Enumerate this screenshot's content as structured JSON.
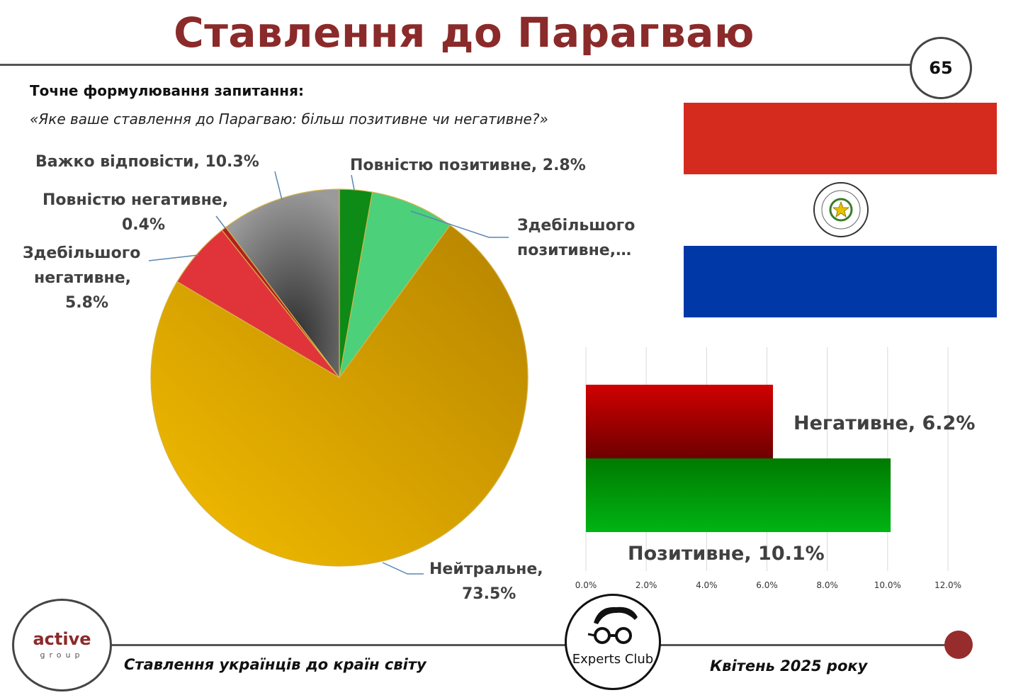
{
  "header": {
    "title": "Ставлення до Парагваю",
    "page_number": "65"
  },
  "question": {
    "label": "Точне формулювання запитання:",
    "text": "«Яке ваше ставлення до Парагваю: більш позитивне чи негативне?»"
  },
  "footer": {
    "logo_main": "active",
    "logo_sub": "group",
    "left_text": "Ставлення українців до країн світу",
    "right_text": "Квітень 2025 року",
    "experts_logo": "Experts Club"
  },
  "flag": {
    "colors": {
      "red": "#d52b1e",
      "white": "#ffffff",
      "blue": "#0038a8"
    }
  },
  "chart_data": [
    {
      "type": "pie",
      "title": "",
      "slices": [
        {
          "label": "Повністю позитивне, 2.8%",
          "value": 2.8,
          "color": "#0e8a16"
        },
        {
          "label": "Здебільшого позитивне,…",
          "value": 7.2,
          "color": "#4cd07a"
        },
        {
          "label": "Нейтральне, 73.5%",
          "value": 73.5,
          "color": "#e8ad00"
        },
        {
          "label": "Здебільшого негативне, 5.8%",
          "value": 5.8,
          "color": "#e0343a"
        },
        {
          "label": "Повністю негативне, 0.4%",
          "value": 0.4,
          "color": "#b02020"
        },
        {
          "label": "Важко відповісти, 10.3%",
          "value": 10.3,
          "color": "#6e6e6e"
        }
      ]
    },
    {
      "type": "bar",
      "orientation": "horizontal",
      "categories": [
        "Негативне",
        "Позитивне"
      ],
      "values": [
        6.2,
        10.1
      ],
      "data_labels": [
        "Негативне, 6.2%",
        "Позитивне, 10.1%"
      ],
      "colors": [
        "#b30000",
        "#0a9a0a"
      ],
      "xlim": [
        0,
        12
      ],
      "xticks": [
        "0.0%",
        "2.0%",
        "4.0%",
        "6.0%",
        "8.0%",
        "10.0%",
        "12.0%"
      ],
      "grid": true
    }
  ]
}
